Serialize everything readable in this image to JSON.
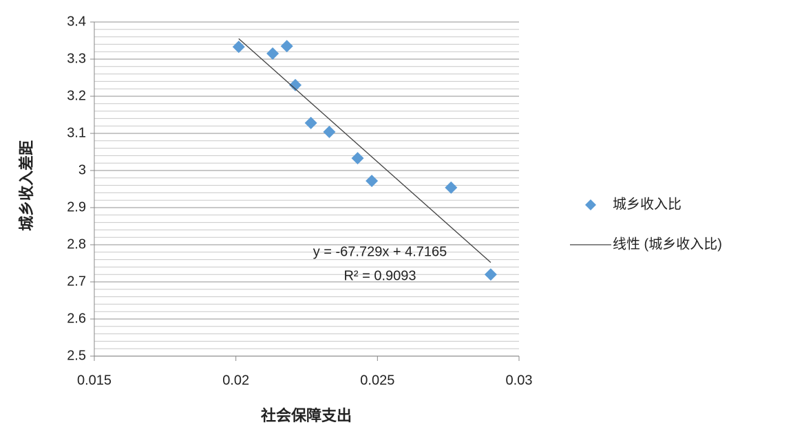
{
  "chart_data": {
    "type": "scatter",
    "x_label": "社会保障支出",
    "y_label": "城乡收入差距",
    "series": [
      {
        "name": "城乡收入比",
        "color": "#5b9bd5",
        "x": [
          0.0201,
          0.0213,
          0.0218,
          0.0221,
          0.02265,
          0.0233,
          0.0243,
          0.0248,
          0.0276,
          0.029
        ],
        "values": [
          3.333,
          3.315,
          3.335,
          3.23,
          3.128,
          3.104,
          3.033,
          2.972,
          2.954,
          2.72
        ]
      }
    ],
    "trendline": {
      "name": "线性 (城乡收入比)",
      "color": "#404040",
      "slope": -67.729,
      "intercept": 4.7165,
      "equation": "y = -67.729x + 4.7165",
      "r2_label": "R² = 0.9093"
    },
    "xlim": [
      0.015,
      0.03
    ],
    "xticks": [
      0.015,
      0.02,
      0.025,
      0.03
    ],
    "ylim": [
      2.5,
      3.4
    ],
    "yticks": [
      2.5,
      2.6,
      2.7,
      2.8,
      2.9,
      3,
      3.1,
      3.2,
      3.3,
      3.4
    ],
    "grid": true,
    "minor_grid": true,
    "legend": "right"
  }
}
